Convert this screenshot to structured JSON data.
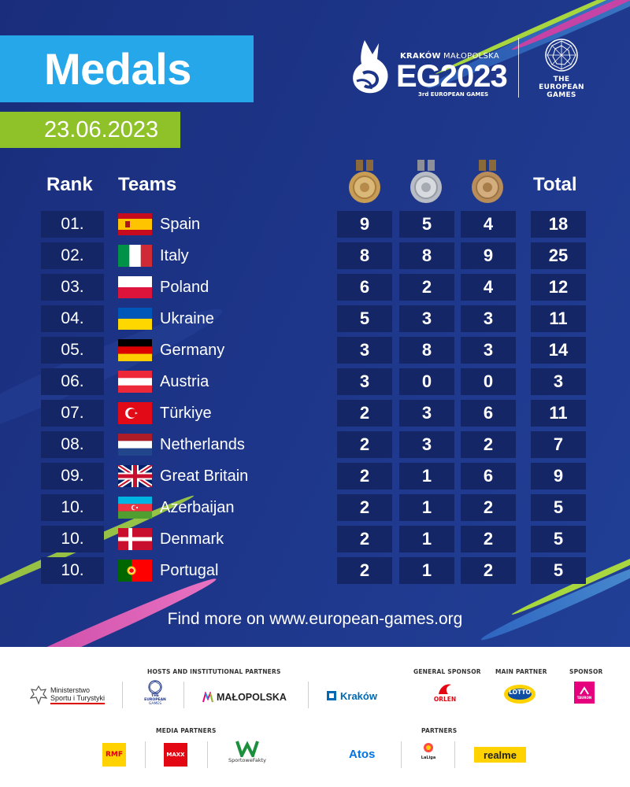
{
  "header": {
    "title": "Medals",
    "date": "23.06.2023"
  },
  "eg_logo": {
    "city1": "KRAKÓW",
    "city2": "MAŁOPOLSKA",
    "mark": "EG2023",
    "subtitle": "3rd EUROPEAN GAMES"
  },
  "teg_logo": {
    "line1": "THE EUROPEAN",
    "line2": "GAMES"
  },
  "columns": {
    "rank": "Rank",
    "teams": "Teams",
    "total": "Total"
  },
  "medal_icons": [
    "gold-medal-icon",
    "silver-medal-icon",
    "bronze-medal-icon"
  ],
  "colors": {
    "title_bg": "#25a7e9",
    "date_bg": "#8fc229",
    "cell_bg": "#142665",
    "gold": "#c79d55",
    "silver": "#b8bcc4",
    "bronze": "#b98d5a"
  },
  "rows": [
    {
      "rank": "01.",
      "team": "Spain",
      "flag": "spain-flag",
      "gold": "9",
      "silver": "5",
      "bronze": "4",
      "total": "18"
    },
    {
      "rank": "02.",
      "team": "Italy",
      "flag": "italy-flag",
      "gold": "8",
      "silver": "8",
      "bronze": "9",
      "total": "25"
    },
    {
      "rank": "03.",
      "team": "Poland",
      "flag": "poland-flag",
      "gold": "6",
      "silver": "2",
      "bronze": "4",
      "total": "12"
    },
    {
      "rank": "04.",
      "team": "Ukraine",
      "flag": "ukraine-flag",
      "gold": "5",
      "silver": "3",
      "bronze": "3",
      "total": "11"
    },
    {
      "rank": "05.",
      "team": "Germany",
      "flag": "germany-flag",
      "gold": "3",
      "silver": "8",
      "bronze": "3",
      "total": "14"
    },
    {
      "rank": "06.",
      "team": "Austria",
      "flag": "austria-flag",
      "gold": "3",
      "silver": "0",
      "bronze": "0",
      "total": "3"
    },
    {
      "rank": "07.",
      "team": "Türkiye",
      "flag": "turkiye-flag",
      "gold": "2",
      "silver": "3",
      "bronze": "6",
      "total": "11"
    },
    {
      "rank": "08.",
      "team": "Netherlands",
      "flag": "netherlands-flag",
      "gold": "2",
      "silver": "3",
      "bronze": "2",
      "total": "7"
    },
    {
      "rank": "09.",
      "team": "Great Britain",
      "flag": "great-britain-flag",
      "gold": "2",
      "silver": "1",
      "bronze": "6",
      "total": "9"
    },
    {
      "rank": "10.",
      "team": "Azerbaijan",
      "flag": "azerbaijan-flag",
      "gold": "2",
      "silver": "1",
      "bronze": "2",
      "total": "5"
    },
    {
      "rank": "10.",
      "team": "Denmark",
      "flag": "denmark-flag",
      "gold": "2",
      "silver": "1",
      "bronze": "2",
      "total": "5"
    },
    {
      "rank": "10.",
      "team": "Portugal",
      "flag": "portugal-flag",
      "gold": "2",
      "silver": "1",
      "bronze": "2",
      "total": "5"
    }
  ],
  "footer": {
    "text": "Find more on www.european-games.org"
  },
  "sponsors": {
    "hosts_heading": "HOSTS AND INSTITUTIONAL PARTNERS",
    "general_heading": "GENERAL SPONSOR",
    "main_heading": "MAIN PARTNER",
    "sponsor_heading": "SPONSOR",
    "media_heading": "MEDIA PARTNERS",
    "partners_heading": "PARTNERS",
    "ministry_line1": "Ministerstwo",
    "ministry_line2": "Sportu i Turystyki",
    "eg_small_line1": "THE",
    "eg_small_line2": "EUROPEAN",
    "eg_small_line3": "GAMES",
    "malopolska": "MAŁOPOLSKA",
    "krakow": "Kraków",
    "orlen": "ORLEN",
    "lotto": "LOTTO",
    "tauron": "TAURON",
    "rmf": "RMF",
    "maxx": "MAXX",
    "sportowe": "SportoweFakty",
    "atos": "Atos",
    "laliga": "LaLiga",
    "realme": "realme"
  }
}
